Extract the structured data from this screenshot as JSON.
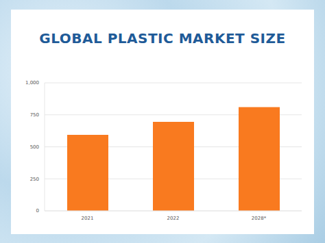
{
  "chart_data": {
    "type": "bar",
    "title": "GLOBAL PLASTIC MARKET SIZE",
    "categories": [
      "2021",
      "2022",
      "2028*"
    ],
    "values": [
      593,
      695,
      810
    ],
    "color": "#f97a1f",
    "ylim": [
      0,
      1000
    ],
    "yticks": [
      0,
      250,
      500,
      750,
      {
        "value": 1000,
        "label": "1,000"
      }
    ],
    "grid": true
  }
}
